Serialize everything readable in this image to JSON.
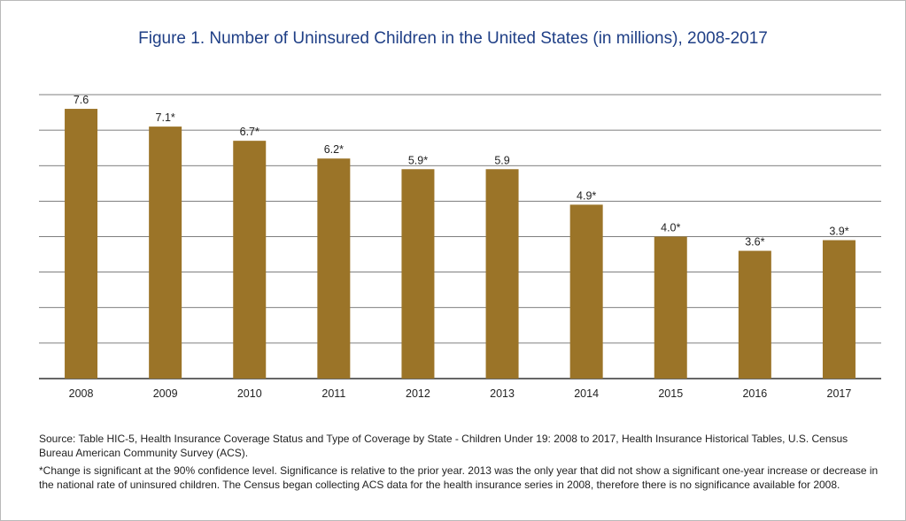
{
  "chart_data": {
    "type": "bar",
    "title": "Figure 1. Number of Uninsured Children in the United States (in millions), 2008-2017",
    "categories": [
      "2008",
      "2009",
      "2010",
      "2011",
      "2012",
      "2013",
      "2014",
      "2015",
      "2016",
      "2017"
    ],
    "values": [
      7.6,
      7.1,
      6.7,
      6.2,
      5.9,
      5.9,
      4.9,
      4.0,
      3.6,
      3.9
    ],
    "labels": [
      "7.6",
      "7.1*",
      "6.7*",
      "6.2*",
      "5.9*",
      "5.9",
      "4.9*",
      "4.0*",
      "3.6*",
      "3.9*"
    ],
    "xlabel": "",
    "ylabel": "",
    "ylim": [
      0,
      8
    ],
    "grid": true,
    "bar_color": "#9b7428",
    "grid_color": "#555555"
  },
  "footnotes": {
    "source": "Source: Table HIC-5, Health Insurance Coverage Status and Type of Coverage by State - Children Under 19: 2008 to 2017, Health Insurance Historical Tables, U.S. Census Bureau American Community Survey (ACS).",
    "significance": "*Change is significant at the 90% confidence level. Significance is relative to the prior year. 2013 was the only year that did not show a significant one-year increase or decrease in the national rate of uninsured children. The Census began collecting ACS data for the health insurance series in 2008, therefore there is no significance available for 2008."
  }
}
